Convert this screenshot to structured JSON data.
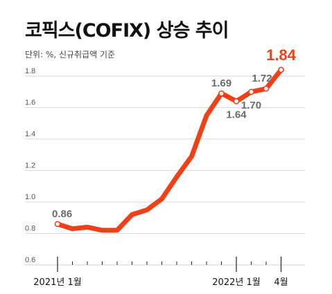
{
  "title": "코픽스(COFIX) 상승 추이",
  "unit_note": "단위: %, 신규취급액 기준",
  "colors": {
    "line": "#f04016",
    "grid": "#d9d9d9",
    "marker_fill": "#ffffff",
    "highlight": "#f04016"
  },
  "chart_data": {
    "type": "line",
    "title": "코픽스(COFIX) 상승 추이",
    "ylim": [
      0.6,
      1.8
    ],
    "yticks": [
      "0.6",
      "0.8",
      "1.0",
      "1.2",
      "1.4",
      "1.6",
      "1.8"
    ],
    "ytick_values": [
      0.6,
      0.8,
      1.0,
      1.2,
      1.4,
      1.6,
      1.8
    ],
    "x_tick_labels": [
      {
        "index": 0,
        "label": "2021년 1월"
      },
      {
        "index": 12,
        "label": "2022년 1월"
      },
      {
        "index": 15,
        "label": "4월"
      }
    ],
    "grid": "horizontal",
    "series": [
      {
        "values": [
          0.86,
          0.83,
          0.84,
          0.82,
          0.82,
          0.92,
          0.95,
          1.02,
          1.16,
          1.29,
          1.55,
          1.69,
          1.64,
          1.7,
          1.72,
          1.84
        ]
      }
    ],
    "labeled_points": [
      {
        "index": 0,
        "label": "0.86",
        "pos": "above"
      },
      {
        "index": 11,
        "label": "1.69",
        "pos": "above"
      },
      {
        "index": 12,
        "label": "1.64",
        "pos": "below"
      },
      {
        "index": 13,
        "label": "1.70",
        "pos": "below"
      },
      {
        "index": 14,
        "label": "1.72",
        "pos": "above"
      },
      {
        "index": 15,
        "label": "1.84",
        "pos": "above",
        "highlight": true
      }
    ]
  }
}
